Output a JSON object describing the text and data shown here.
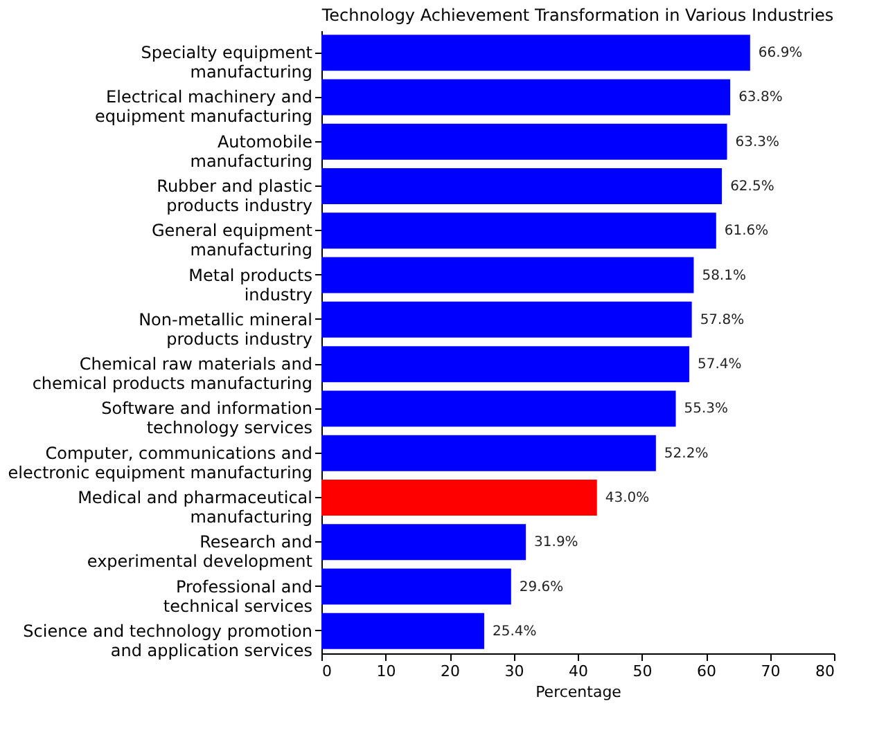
{
  "chart_data": {
    "type": "bar",
    "orientation": "horizontal",
    "title": "Technology Achievement Transformation in Various Industries",
    "xlabel": "Percentage",
    "categories": [
      "Specialty equipment manufacturing",
      "Electrical machinery and equipment manufacturing",
      "Automobile manufacturing",
      "Rubber and plastic products industry",
      "General equipment manufacturing",
      "Metal products industry",
      "Non-metallic mineral products industry",
      "Chemical raw materials and chemical products manufacturing",
      "Software and information technology services",
      "Computer, communications and electronic equipment manufacturing",
      "Medical and pharmaceutical manufacturing",
      "Research and experimental development",
      "Professional and technical services",
      "Science and technology promotion and application services"
    ],
    "values": [
      66.9,
      63.8,
      63.3,
      62.5,
      61.6,
      58.1,
      57.8,
      57.4,
      55.3,
      52.2,
      43.0,
      31.9,
      29.6,
      25.4
    ],
    "value_labels": [
      "66.9%",
      "63.8%",
      "63.3%",
      "62.5%",
      "61.6%",
      "58.1%",
      "57.8%",
      "57.4%",
      "55.3%",
      "52.2%",
      "43.0%",
      "31.9%",
      "29.6%",
      "25.4%"
    ],
    "colors": [
      "#0000ff",
      "#0000ff",
      "#0000ff",
      "#0000ff",
      "#0000ff",
      "#0000ff",
      "#0000ff",
      "#0000ff",
      "#0000ff",
      "#0000ff",
      "#ff0000",
      "#0000ff",
      "#0000ff",
      "#0000ff"
    ],
    "xlim": [
      0,
      80
    ],
    "xticks": [
      0,
      10,
      20,
      30,
      40,
      50,
      60,
      70,
      80
    ],
    "grid": false
  }
}
